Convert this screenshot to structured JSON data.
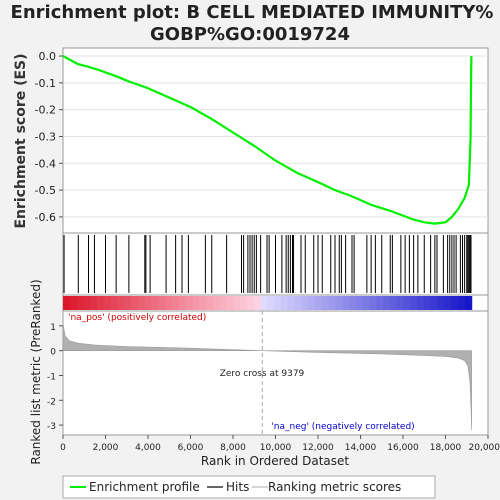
{
  "chart_data": {
    "type": "line",
    "title_line1": "Enrichment plot: B CELL MEDIATED IMMUNITY%",
    "title_line2": "GOBP%GO:0019724",
    "es_panel": {
      "ylabel": "Enrichment score (ES)",
      "ylim": [
        -0.66,
        0.03
      ],
      "yticks": [
        "0.0",
        "-0.1",
        "-0.2",
        "-0.3",
        "-0.4",
        "-0.5",
        "-0.6"
      ],
      "ytick_values": [
        0.0,
        -0.1,
        -0.2,
        -0.3,
        -0.4,
        -0.5,
        -0.6
      ],
      "x": [
        0,
        700,
        1200,
        1600,
        2500,
        3100,
        4000,
        5000,
        6000,
        7000,
        8000,
        9000,
        10000,
        11000,
        12000,
        12800,
        13500,
        14500,
        15500,
        16500,
        17000,
        17500,
        18000,
        18300,
        18600,
        18900,
        19100,
        19180,
        19200,
        19220
      ],
      "es": [
        0.0,
        -0.03,
        -0.04,
        -0.05,
        -0.075,
        -0.095,
        -0.12,
        -0.155,
        -0.19,
        -0.235,
        -0.285,
        -0.335,
        -0.39,
        -0.435,
        -0.47,
        -0.5,
        -0.52,
        -0.555,
        -0.58,
        -0.61,
        -0.62,
        -0.625,
        -0.62,
        -0.6,
        -0.57,
        -0.53,
        -0.48,
        -0.3,
        -0.1,
        0.0
      ],
      "color": "#00ee00"
    },
    "hits": {
      "positions": [
        50,
        720,
        1200,
        1480,
        2000,
        2500,
        3100,
        3850,
        3900,
        4100,
        4850,
        5300,
        5600,
        5900,
        6700,
        7000,
        7700,
        8400,
        8500,
        8700,
        8800,
        8900,
        9000,
        9100,
        9300,
        9600,
        9700,
        10000,
        10300,
        10500,
        10600,
        10700,
        10800,
        10850,
        11200,
        11400,
        11800,
        12000,
        12200,
        12600,
        12800,
        13000,
        13100,
        13300,
        13600,
        13700,
        14300,
        14500,
        14700,
        15000,
        15400,
        15500,
        15900,
        16100,
        16300,
        16500,
        16700,
        17000,
        17300,
        17500,
        17600,
        17900,
        18100,
        18200,
        18300,
        18400,
        18500,
        18700,
        18800,
        18900,
        19000,
        19050,
        19100,
        19150,
        19200
      ]
    },
    "ranked_metric": {
      "ylabel": "Ranked list metric (PreRanked)",
      "xlabel": "Rank in Ordered Dataset",
      "ylim": [
        -3.4,
        1.6
      ],
      "yticks": [
        "1",
        "0",
        "-1",
        "-2",
        "-3"
      ],
      "ytick_values": [
        1,
        0,
        -1,
        -2,
        -3
      ],
      "xlim": [
        0,
        20000
      ],
      "xticks": [
        "0",
        "2,000",
        "4,000",
        "6,000",
        "8,000",
        "10,000",
        "12,000",
        "14,000",
        "16,000",
        "18,000",
        "20,000"
      ],
      "xtick_values": [
        0,
        2000,
        4000,
        6000,
        8000,
        10000,
        12000,
        14000,
        16000,
        18000,
        20000
      ],
      "x": [
        0,
        100,
        300,
        700,
        1500,
        3000,
        6000,
        9379,
        12000,
        15000,
        17000,
        18000,
        18600,
        18900,
        19050,
        19150,
        19200,
        19230
      ],
      "values": [
        1.1,
        0.6,
        0.4,
        0.3,
        0.23,
        0.17,
        0.1,
        0.0,
        -0.07,
        -0.13,
        -0.19,
        -0.23,
        -0.3,
        -0.4,
        -0.6,
        -1.2,
        -2.3,
        -3.2
      ],
      "fill_color": "#b0b0b0",
      "zero_cross_label": "Zero cross at 9379",
      "zero_cross": 9379,
      "pos_label": "'na_pos' (positively correlated)",
      "neg_label": "'na_neg' (negatively correlated)",
      "pos_color": "#cc0000",
      "neg_color": "#0000cc"
    },
    "legend": {
      "placement": "bottom",
      "items": [
        {
          "label": "Enrichment profile",
          "color": "#00ee00"
        },
        {
          "label": "Hits",
          "color": "#000000"
        },
        {
          "label": "Ranking metric scores",
          "color": "#c8c8c8"
        }
      ]
    }
  }
}
